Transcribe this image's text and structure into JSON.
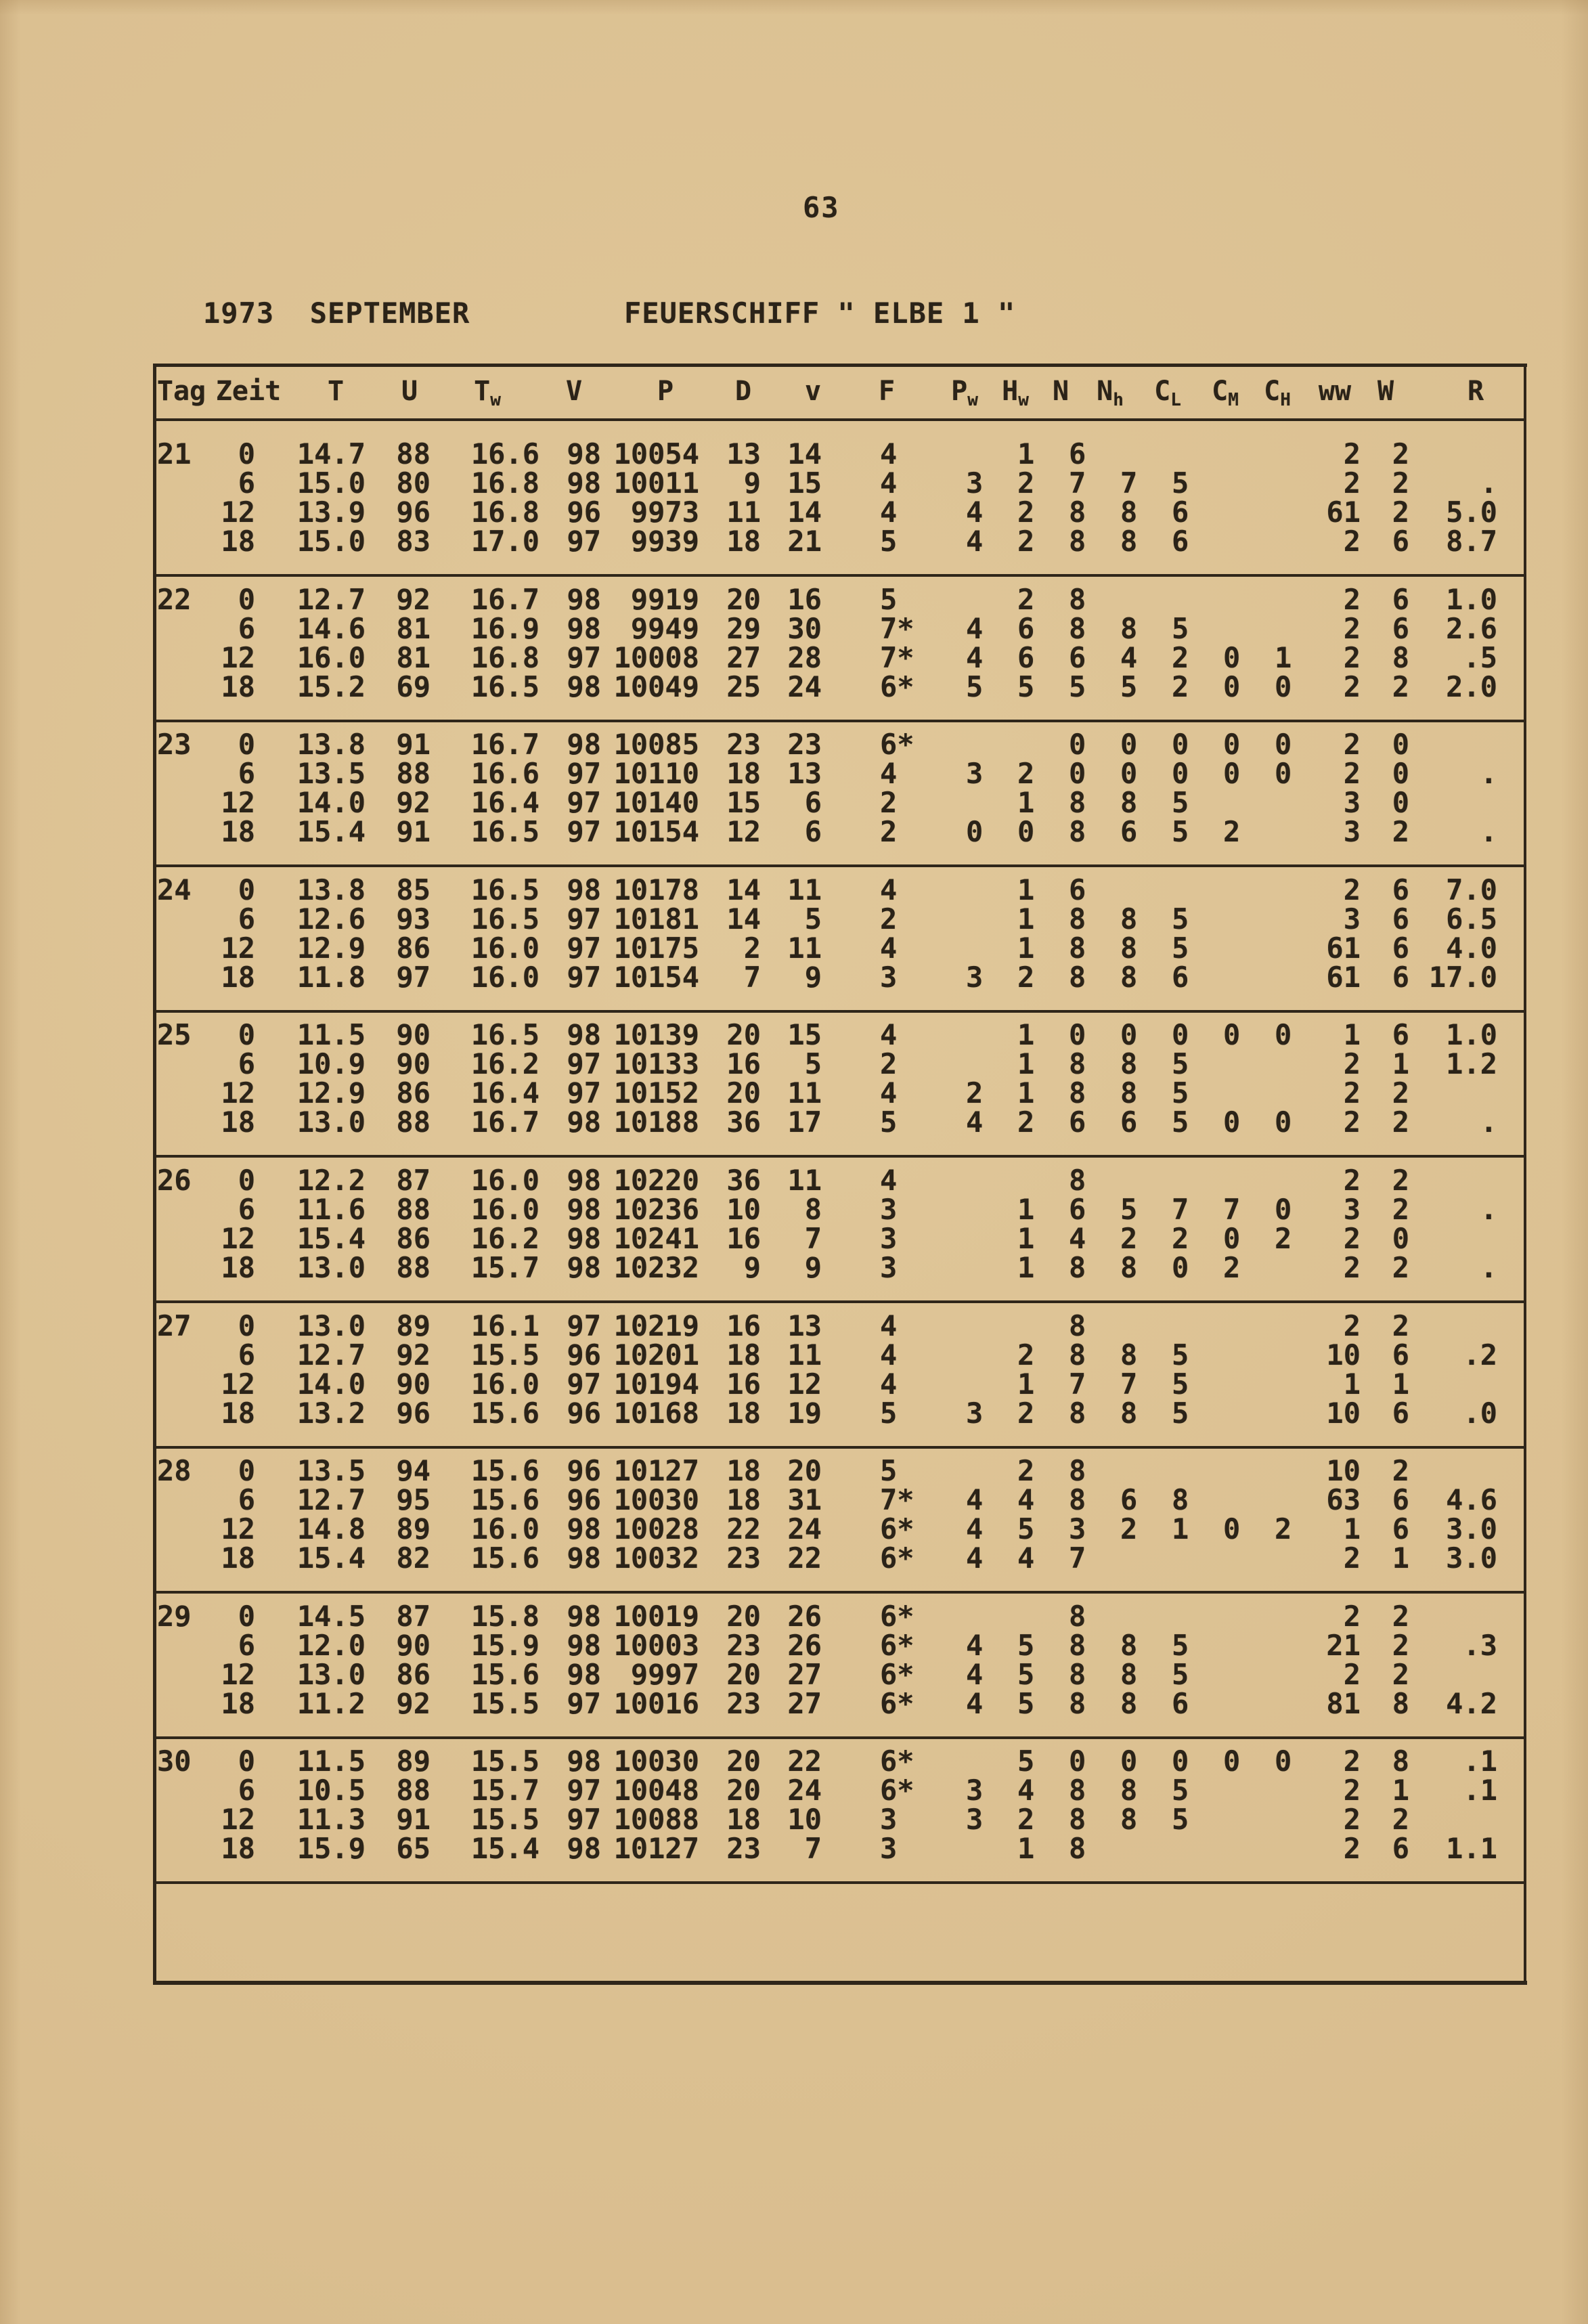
{
  "page": {
    "number": "63"
  },
  "header": {
    "date": "1973  SEPTEMBER",
    "station": "FEUERSCHIFF \" ELBE 1 \""
  },
  "colors": {
    "paper": "#d9bd8e",
    "ink": "#2b2318"
  },
  "table": {
    "columns": [
      {
        "label": "Tag"
      },
      {
        "label": "Zeit"
      },
      {
        "label": "T"
      },
      {
        "label": "U"
      },
      {
        "label": "T",
        "sub": "w"
      },
      {
        "label": "V"
      },
      {
        "label": "P"
      },
      {
        "label": "D"
      },
      {
        "label": "v"
      },
      {
        "label": "F"
      },
      {
        "label": "P",
        "sub": "w"
      },
      {
        "label": "H",
        "sub": "w"
      },
      {
        "label": "N"
      },
      {
        "label": "N",
        "sub": "h"
      },
      {
        "label": "C",
        "sub": "L"
      },
      {
        "label": "C",
        "sub": "M"
      },
      {
        "label": "C",
        "sub": "H"
      },
      {
        "label": "ww"
      },
      {
        "label": "W"
      },
      {
        "label": "R"
      }
    ],
    "days": [
      {
        "day": "21",
        "rows": [
          [
            "21",
            "0",
            "14.7",
            "88",
            "16.6",
            "98",
            "10054",
            "13",
            "14",
            "4",
            "",
            "1",
            "6",
            "",
            "",
            "",
            "",
            "2",
            "2",
            ""
          ],
          [
            "",
            "6",
            "15.0",
            "80",
            "16.8",
            "98",
            "10011",
            "9",
            "15",
            "4",
            "3",
            "2",
            "7",
            "7",
            "5",
            "",
            "",
            "2",
            "2",
            "."
          ],
          [
            "",
            "12",
            "13.9",
            "96",
            "16.8",
            "96",
            "9973",
            "11",
            "14",
            "4",
            "4",
            "2",
            "8",
            "8",
            "6",
            "",
            "",
            "61",
            "2",
            "5.0"
          ],
          [
            "",
            "18",
            "15.0",
            "83",
            "17.0",
            "97",
            "9939",
            "18",
            "21",
            "5",
            "4",
            "2",
            "8",
            "8",
            "6",
            "",
            "",
            "2",
            "6",
            "8.7"
          ]
        ]
      },
      {
        "day": "22",
        "rows": [
          [
            "22",
            "0",
            "12.7",
            "92",
            "16.7",
            "98",
            "9919",
            "20",
            "16",
            "5",
            "",
            "2",
            "8",
            "",
            "",
            "",
            "",
            "2",
            "6",
            "1.0"
          ],
          [
            "",
            "6",
            "14.6",
            "81",
            "16.9",
            "98",
            "9949",
            "29",
            "30",
            "7*",
            "4",
            "6",
            "8",
            "8",
            "5",
            "",
            "",
            "2",
            "6",
            "2.6"
          ],
          [
            "",
            "12",
            "16.0",
            "81",
            "16.8",
            "97",
            "10008",
            "27",
            "28",
            "7*",
            "4",
            "6",
            "6",
            "4",
            "2",
            "0",
            "1",
            "2",
            "8",
            ".5"
          ],
          [
            "",
            "18",
            "15.2",
            "69",
            "16.5",
            "98",
            "10049",
            "25",
            "24",
            "6*",
            "5",
            "5",
            "5",
            "5",
            "2",
            "0",
            "0",
            "2",
            "2",
            "2.0"
          ]
        ]
      },
      {
        "day": "23",
        "rows": [
          [
            "23",
            "0",
            "13.8",
            "91",
            "16.7",
            "98",
            "10085",
            "23",
            "23",
            "6*",
            "",
            "",
            "0",
            "0",
            "0",
            "0",
            "0",
            "2",
            "0",
            ""
          ],
          [
            "",
            "6",
            "13.5",
            "88",
            "16.6",
            "97",
            "10110",
            "18",
            "13",
            "4",
            "3",
            "2",
            "0",
            "0",
            "0",
            "0",
            "0",
            "2",
            "0",
            "."
          ],
          [
            "",
            "12",
            "14.0",
            "92",
            "16.4",
            "97",
            "10140",
            "15",
            "6",
            "2",
            "",
            "1",
            "8",
            "8",
            "5",
            "",
            "",
            "3",
            "0",
            ""
          ],
          [
            "",
            "18",
            "15.4",
            "91",
            "16.5",
            "97",
            "10154",
            "12",
            "6",
            "2",
            "0",
            "0",
            "8",
            "6",
            "5",
            "2",
            "",
            "3",
            "2",
            "."
          ]
        ]
      },
      {
        "day": "24",
        "rows": [
          [
            "24",
            "0",
            "13.8",
            "85",
            "16.5",
            "98",
            "10178",
            "14",
            "11",
            "4",
            "",
            "1",
            "6",
            "",
            "",
            "",
            "",
            "2",
            "6",
            "7.0"
          ],
          [
            "",
            "6",
            "12.6",
            "93",
            "16.5",
            "97",
            "10181",
            "14",
            "5",
            "2",
            "",
            "1",
            "8",
            "8",
            "5",
            "",
            "",
            "3",
            "6",
            "6.5"
          ],
          [
            "",
            "12",
            "12.9",
            "86",
            "16.0",
            "97",
            "10175",
            "2",
            "11",
            "4",
            "",
            "1",
            "8",
            "8",
            "5",
            "",
            "",
            "61",
            "6",
            "4.0"
          ],
          [
            "",
            "18",
            "11.8",
            "97",
            "16.0",
            "97",
            "10154",
            "7",
            "9",
            "3",
            "3",
            "2",
            "8",
            "8",
            "6",
            "",
            "",
            "61",
            "6",
            "17.0"
          ]
        ]
      },
      {
        "day": "25",
        "rows": [
          [
            "25",
            "0",
            "11.5",
            "90",
            "16.5",
            "98",
            "10139",
            "20",
            "15",
            "4",
            "",
            "1",
            "0",
            "0",
            "0",
            "0",
            "0",
            "1",
            "6",
            "1.0"
          ],
          [
            "",
            "6",
            "10.9",
            "90",
            "16.2",
            "97",
            "10133",
            "16",
            "5",
            "2",
            "",
            "1",
            "8",
            "8",
            "5",
            "",
            "",
            "2",
            "1",
            "1.2"
          ],
          [
            "",
            "12",
            "12.9",
            "86",
            "16.4",
            "97",
            "10152",
            "20",
            "11",
            "4",
            "2",
            "1",
            "8",
            "8",
            "5",
            "",
            "",
            "2",
            "2",
            ""
          ],
          [
            "",
            "18",
            "13.0",
            "88",
            "16.7",
            "98",
            "10188",
            "36",
            "17",
            "5",
            "4",
            "2",
            "6",
            "6",
            "5",
            "0",
            "0",
            "2",
            "2",
            "."
          ]
        ]
      },
      {
        "day": "26",
        "rows": [
          [
            "26",
            "0",
            "12.2",
            "87",
            "16.0",
            "98",
            "10220",
            "36",
            "11",
            "4",
            "",
            "",
            "8",
            "",
            "",
            "",
            "",
            "2",
            "2",
            ""
          ],
          [
            "",
            "6",
            "11.6",
            "88",
            "16.0",
            "98",
            "10236",
            "10",
            "8",
            "3",
            "",
            "1",
            "6",
            "5",
            "7",
            "7",
            "0",
            "3",
            "2",
            "."
          ],
          [
            "",
            "12",
            "15.4",
            "86",
            "16.2",
            "98",
            "10241",
            "16",
            "7",
            "3",
            "",
            "1",
            "4",
            "2",
            "2",
            "0",
            "2",
            "2",
            "0",
            ""
          ],
          [
            "",
            "18",
            "13.0",
            "88",
            "15.7",
            "98",
            "10232",
            "9",
            "9",
            "3",
            "",
            "1",
            "8",
            "8",
            "0",
            "2",
            "",
            "2",
            "2",
            "."
          ]
        ]
      },
      {
        "day": "27",
        "rows": [
          [
            "27",
            "0",
            "13.0",
            "89",
            "16.1",
            "97",
            "10219",
            "16",
            "13",
            "4",
            "",
            "",
            "8",
            "",
            "",
            "",
            "",
            "2",
            "2",
            ""
          ],
          [
            "",
            "6",
            "12.7",
            "92",
            "15.5",
            "96",
            "10201",
            "18",
            "11",
            "4",
            "",
            "2",
            "8",
            "8",
            "5",
            "",
            "",
            "10",
            "6",
            ".2"
          ],
          [
            "",
            "12",
            "14.0",
            "90",
            "16.0",
            "97",
            "10194",
            "16",
            "12",
            "4",
            "",
            "1",
            "7",
            "7",
            "5",
            "",
            "",
            "1",
            "1",
            ""
          ],
          [
            "",
            "18",
            "13.2",
            "96",
            "15.6",
            "96",
            "10168",
            "18",
            "19",
            "5",
            "3",
            "2",
            "8",
            "8",
            "5",
            "",
            "",
            "10",
            "6",
            ".0"
          ]
        ]
      },
      {
        "day": "28",
        "rows": [
          [
            "28",
            "0",
            "13.5",
            "94",
            "15.6",
            "96",
            "10127",
            "18",
            "20",
            "5",
            "",
            "2",
            "8",
            "",
            "",
            "",
            "",
            "10",
            "2",
            ""
          ],
          [
            "",
            "6",
            "12.7",
            "95",
            "15.6",
            "96",
            "10030",
            "18",
            "31",
            "7*",
            "4",
            "4",
            "8",
            "6",
            "8",
            "",
            "",
            "63",
            "6",
            "4.6"
          ],
          [
            "",
            "12",
            "14.8",
            "89",
            "16.0",
            "98",
            "10028",
            "22",
            "24",
            "6*",
            "4",
            "5",
            "3",
            "2",
            "1",
            "0",
            "2",
            "1",
            "6",
            "3.0"
          ],
          [
            "",
            "18",
            "15.4",
            "82",
            "15.6",
            "98",
            "10032",
            "23",
            "22",
            "6*",
            "4",
            "4",
            "7",
            "",
            "",
            "",
            "",
            "2",
            "1",
            "3.0"
          ]
        ]
      },
      {
        "day": "29",
        "rows": [
          [
            "29",
            "0",
            "14.5",
            "87",
            "15.8",
            "98",
            "10019",
            "20",
            "26",
            "6*",
            "",
            "",
            "8",
            "",
            "",
            "",
            "",
            "2",
            "2",
            ""
          ],
          [
            "",
            "6",
            "12.0",
            "90",
            "15.9",
            "98",
            "10003",
            "23",
            "26",
            "6*",
            "4",
            "5",
            "8",
            "8",
            "5",
            "",
            "",
            "21",
            "2",
            ".3"
          ],
          [
            "",
            "12",
            "13.0",
            "86",
            "15.6",
            "98",
            "9997",
            "20",
            "27",
            "6*",
            "4",
            "5",
            "8",
            "8",
            "5",
            "",
            "",
            "2",
            "2",
            ""
          ],
          [
            "",
            "18",
            "11.2",
            "92",
            "15.5",
            "97",
            "10016",
            "23",
            "27",
            "6*",
            "4",
            "5",
            "8",
            "8",
            "6",
            "",
            "",
            "81",
            "8",
            "4.2"
          ]
        ]
      },
      {
        "day": "30",
        "rows": [
          [
            "30",
            "0",
            "11.5",
            "89",
            "15.5",
            "98",
            "10030",
            "20",
            "22",
            "6*",
            "",
            "5",
            "0",
            "0",
            "0",
            "0",
            "0",
            "2",
            "8",
            ".1"
          ],
          [
            "",
            "6",
            "10.5",
            "88",
            "15.7",
            "97",
            "10048",
            "20",
            "24",
            "6*",
            "3",
            "4",
            "8",
            "8",
            "5",
            "",
            "",
            "2",
            "1",
            ".1"
          ],
          [
            "",
            "12",
            "11.3",
            "91",
            "15.5",
            "97",
            "10088",
            "18",
            "10",
            "3",
            "3",
            "2",
            "8",
            "8",
            "5",
            "",
            "",
            "2",
            "2",
            ""
          ],
          [
            "",
            "18",
            "15.9",
            "65",
            "15.4",
            "98",
            "10127",
            "23",
            "7",
            "3",
            "",
            "1",
            "8",
            "",
            "",
            "",
            "",
            "2",
            "6",
            "1.1"
          ]
        ]
      }
    ]
  }
}
